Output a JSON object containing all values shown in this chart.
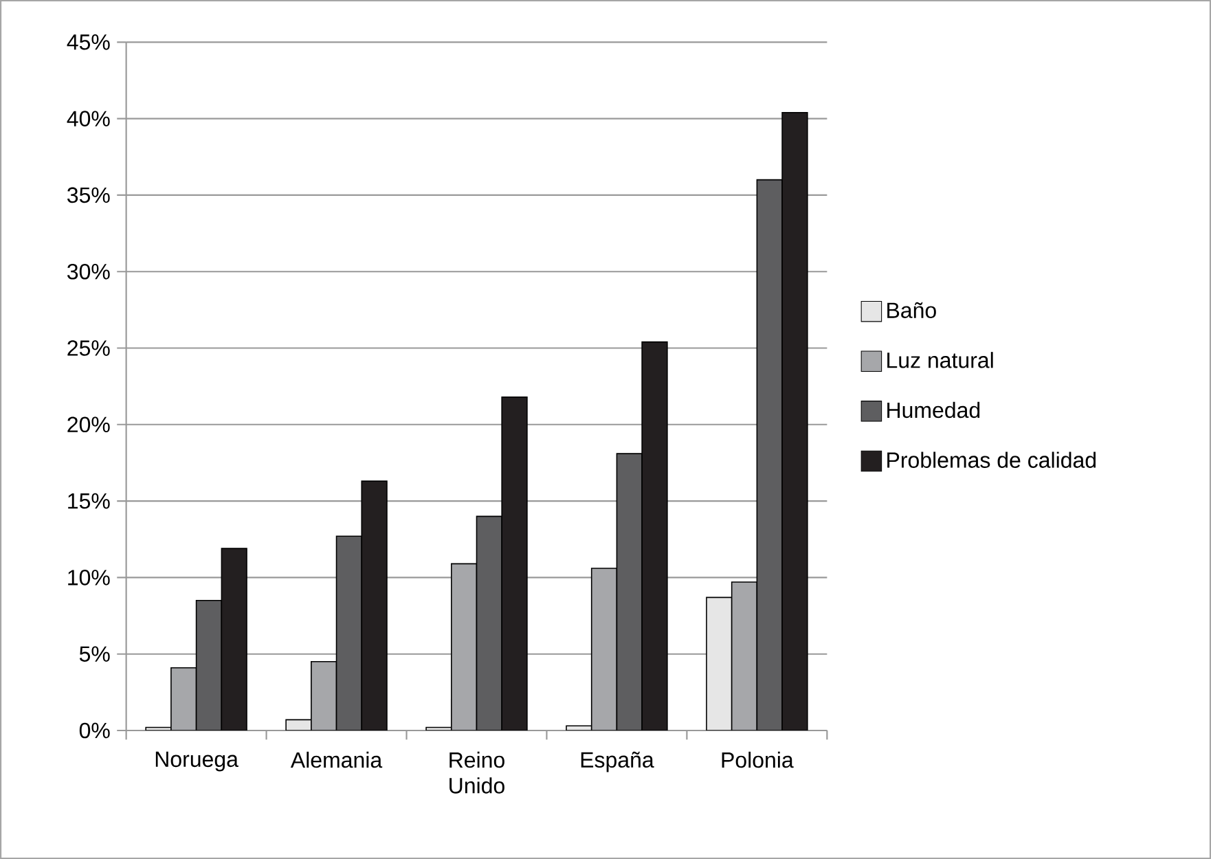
{
  "chart_data": {
    "type": "bar",
    "categories": [
      "Noruega",
      "Alemania",
      "Reino Unido",
      "España",
      "Polonia"
    ],
    "series": [
      {
        "name": "Baño",
        "color": "#e6e6e6",
        "values": [
          0.2,
          0.7,
          0.2,
          0.3,
          8.7
        ]
      },
      {
        "name": "Luz natural",
        "color": "#a6a7aa",
        "values": [
          4.1,
          4.5,
          10.9,
          10.6,
          9.7
        ]
      },
      {
        "name": "Humedad",
        "color": "#5e5e60",
        "values": [
          8.5,
          12.7,
          14.0,
          18.1,
          36.0
        ]
      },
      {
        "name": "Problemas de calidad",
        "color": "#231f20",
        "values": [
          11.9,
          16.3,
          21.8,
          25.4,
          40.4
        ]
      }
    ],
    "ylim": [
      0,
      45
    ],
    "yticks": [
      {
        "value": 0,
        "label": "0%"
      },
      {
        "value": 5,
        "label": "5%"
      },
      {
        "value": 10,
        "label": "10%"
      },
      {
        "value": 15,
        "label": "15%"
      },
      {
        "value": 20,
        "label": "20%"
      },
      {
        "value": 25,
        "label": "25%"
      },
      {
        "value": 30,
        "label": "30%"
      },
      {
        "value": 35,
        "label": "35%"
      },
      {
        "value": 40,
        "label": "40%"
      },
      {
        "value": 45,
        "label": "45%"
      }
    ],
    "grid": "y",
    "legend": "right"
  }
}
